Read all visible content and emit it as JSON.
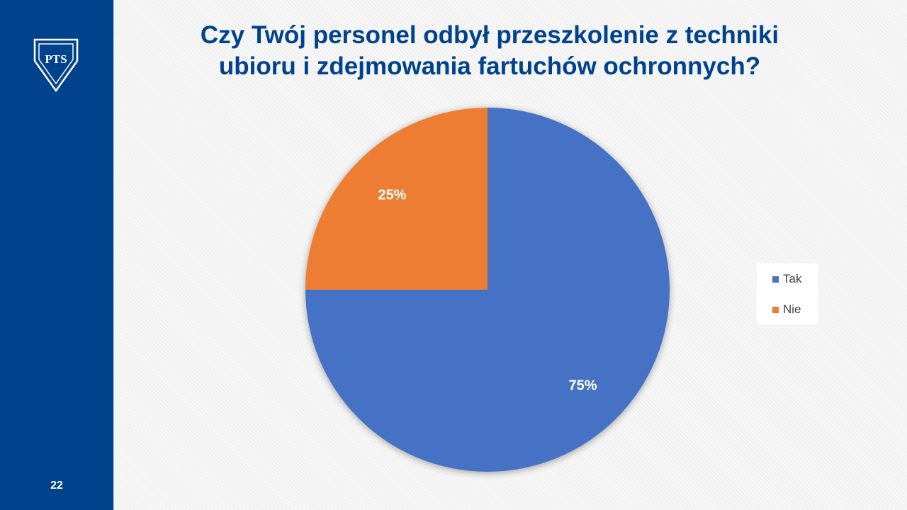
{
  "slide": {
    "page_number": "22",
    "logo_text": "PTS"
  },
  "colors": {
    "sidebar": "#00428b",
    "title": "#00428b",
    "tak": "#4472c4",
    "nie": "#ed7d31"
  },
  "chart_data": {
    "type": "pie",
    "title": "Czy Twój personel odbył przeszkolenie z techniki ubioru i zdejmowania fartuchów ochronnych?",
    "title_lines": [
      "Czy Twój personel odbył przeszkolenie z techniki",
      "ubioru i zdejmowania fartuchów ochronnych?"
    ],
    "categories": [
      "Tak",
      "Nie"
    ],
    "values": [
      75,
      25
    ],
    "data_labels": [
      "75%",
      "25%"
    ],
    "colors": [
      "#4472c4",
      "#ed7d31"
    ],
    "start_angle_deg": 0,
    "direction": "clockwise",
    "legend_position": "right"
  }
}
